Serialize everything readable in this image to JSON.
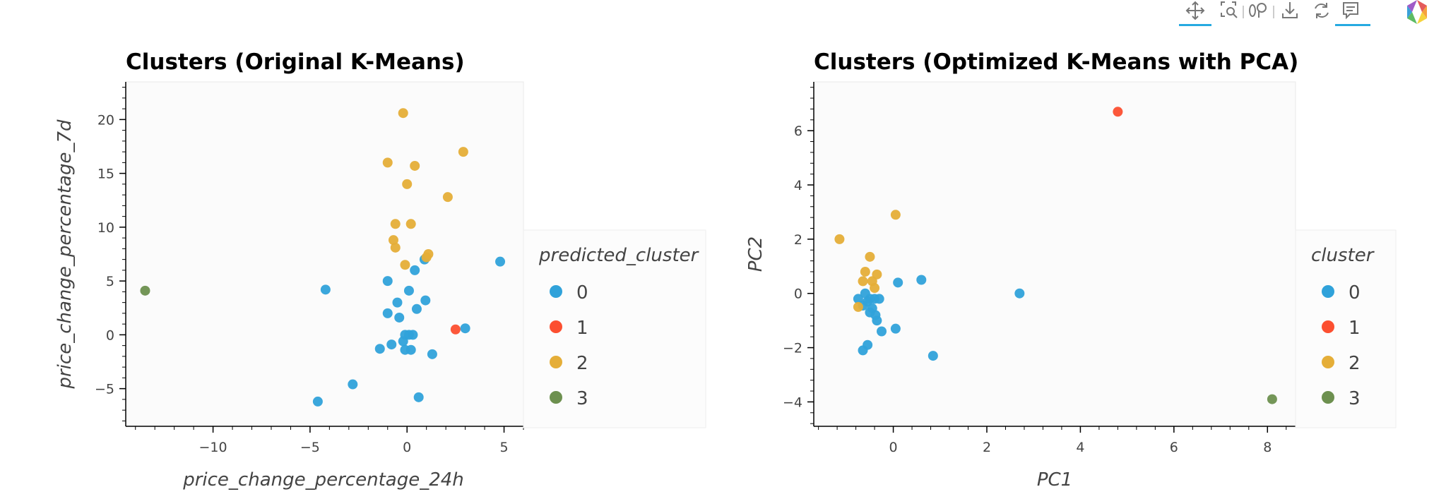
{
  "colors": {
    "cluster_0": "#30a2da",
    "cluster_1": "#fc4f30",
    "cluster_2": "#e5ae38",
    "cluster_3": "#6d904f",
    "tool_active": "#26aae1",
    "logo": "multicolor-hexagon"
  },
  "toolbar": {
    "icons": [
      "pan-icon",
      "box-zoom-icon",
      "wheel-zoom-icon",
      "save-icon",
      "reset-icon",
      "hover-icon",
      "bokeh-logo-icon"
    ]
  },
  "chart_data": [
    {
      "type": "scatter",
      "title": "Clusters (Original K-Means)",
      "xlabel": "price_change_percentage_24h",
      "ylabel": "price_change_percentage_7d",
      "xlim": [
        -14.5,
        6
      ],
      "ylim": [
        -8.5,
        23.5
      ],
      "xticks": [
        -10,
        -5,
        0,
        5
      ],
      "yticks": [
        -5,
        0,
        5,
        10,
        15,
        20
      ],
      "grid": false,
      "legend_title": "predicted_cluster",
      "legend_position": "right",
      "series": [
        {
          "name": "0",
          "color": "#30a2da",
          "points": [
            [
              -4.2,
              4.2
            ],
            [
              -1.0,
              5.0
            ],
            [
              -1.0,
              2.0
            ],
            [
              -0.5,
              3.0
            ],
            [
              -0.4,
              1.6
            ],
            [
              0.1,
              4.1
            ],
            [
              0.4,
              6.0
            ],
            [
              0.9,
              7.0
            ],
            [
              0.95,
              3.2
            ],
            [
              0.5,
              2.4
            ],
            [
              -0.8,
              -0.9
            ],
            [
              -1.4,
              -1.3
            ],
            [
              -0.2,
              -0.6
            ],
            [
              -0.1,
              0.0
            ],
            [
              0.1,
              0.0
            ],
            [
              0.3,
              0.0
            ],
            [
              -0.1,
              -1.4
            ],
            [
              0.2,
              -1.4
            ],
            [
              1.3,
              -1.8
            ],
            [
              3.0,
              0.6
            ],
            [
              4.8,
              6.8
            ],
            [
              -2.8,
              -4.6
            ],
            [
              -4.6,
              -6.2
            ],
            [
              0.6,
              -5.8
            ]
          ]
        },
        {
          "name": "1",
          "color": "#fc4f30",
          "points": [
            [
              2.5,
              0.5
            ]
          ]
        },
        {
          "name": "2",
          "color": "#e5ae38",
          "points": [
            [
              -0.2,
              20.6
            ],
            [
              -1.0,
              16.0
            ],
            [
              0.4,
              15.7
            ],
            [
              2.9,
              17.0
            ],
            [
              0.0,
              14.0
            ],
            [
              2.1,
              12.8
            ],
            [
              -0.6,
              10.3
            ],
            [
              0.2,
              10.3
            ],
            [
              -0.7,
              8.8
            ],
            [
              -0.6,
              8.1
            ],
            [
              1.1,
              7.5
            ],
            [
              1.0,
              7.2
            ],
            [
              -0.1,
              6.5
            ]
          ]
        },
        {
          "name": "3",
          "color": "#6d904f",
          "points": [
            [
              -13.5,
              4.1
            ]
          ]
        }
      ]
    },
    {
      "type": "scatter",
      "title": "Clusters (Optimized K-Means with PCA)",
      "xlabel": "PC1",
      "ylabel": "PC2",
      "xlim": [
        -1.7,
        8.6
      ],
      "ylim": [
        -4.9,
        7.8
      ],
      "xticks": [
        0,
        2,
        4,
        6,
        8
      ],
      "yticks": [
        -4,
        -2,
        0,
        2,
        4,
        6
      ],
      "grid": false,
      "legend_title": "cluster",
      "legend_position": "right",
      "series": [
        {
          "name": "0",
          "color": "#30a2da",
          "points": [
            [
              -0.75,
              -0.2
            ],
            [
              -0.6,
              0.0
            ],
            [
              -0.5,
              -0.2
            ],
            [
              -0.4,
              -0.2
            ],
            [
              -0.3,
              -0.2
            ],
            [
              -0.55,
              -0.3
            ],
            [
              -0.65,
              -0.45
            ],
            [
              -0.45,
              -0.55
            ],
            [
              -0.5,
              -0.7
            ],
            [
              -0.38,
              -0.8
            ],
            [
              -0.35,
              -1.0
            ],
            [
              -0.25,
              -1.4
            ],
            [
              0.05,
              -1.3
            ],
            [
              0.1,
              0.4
            ],
            [
              0.6,
              0.5
            ],
            [
              2.7,
              0.0
            ],
            [
              -0.55,
              -1.9
            ],
            [
              -0.65,
              -2.1
            ],
            [
              0.85,
              -2.3
            ]
          ]
        },
        {
          "name": "1",
          "color": "#fc4f30",
          "points": [
            [
              4.8,
              6.7
            ]
          ]
        },
        {
          "name": "2",
          "color": "#e5ae38",
          "points": [
            [
              -1.15,
              2.0
            ],
            [
              0.05,
              2.9
            ],
            [
              -0.5,
              1.35
            ],
            [
              -0.6,
              0.8
            ],
            [
              -0.35,
              0.7
            ],
            [
              -0.45,
              0.45
            ],
            [
              -0.65,
              0.45
            ],
            [
              -0.4,
              0.2
            ],
            [
              -0.75,
              -0.5
            ]
          ]
        },
        {
          "name": "3",
          "color": "#6d904f",
          "points": [
            [
              8.1,
              -3.9
            ]
          ]
        }
      ]
    }
  ]
}
